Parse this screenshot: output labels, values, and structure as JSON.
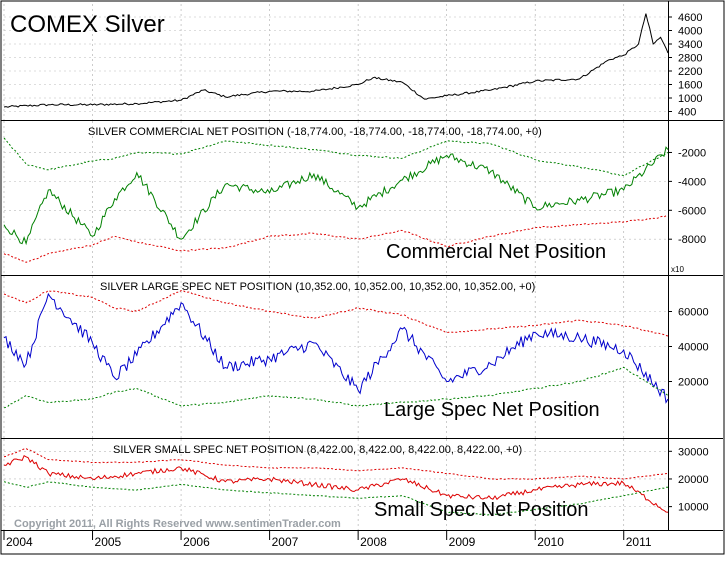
{
  "chart_data": [
    {
      "type": "line",
      "title": "COMEX Silver",
      "y_ticks": [
        400,
        1000,
        1600,
        2200,
        2800,
        3400,
        4000,
        4600
      ],
      "ylim": [
        200,
        5000
      ],
      "x": [
        "2004-01",
        "2004-07",
        "2005-01",
        "2005-07",
        "2006-01",
        "2006-04",
        "2006-07",
        "2007-01",
        "2007-07",
        "2008-01",
        "2008-03",
        "2008-07",
        "2008-10",
        "2009-01",
        "2009-07",
        "2010-01",
        "2010-07",
        "2010-11",
        "2011-01",
        "2011-03",
        "2011-04",
        "2011-05",
        "2011-06",
        "2011-07"
      ],
      "series": [
        {
          "values": [
            600,
            700,
            700,
            750,
            900,
            1350,
            1050,
            1300,
            1300,
            1600,
            1900,
            1700,
            950,
            1100,
            1350,
            1750,
            1850,
            2700,
            2900,
            3400,
            4750,
            3400,
            3700,
            3000
          ]
        }
      ]
    },
    {
      "type": "line",
      "title": "SILVER COMMERCIAL NET POSITION (-18,774.00, -18,774.00, -18,774.00, -18,774.00, +0)",
      "annotation": "Commercial Net Position",
      "y_ticks": [
        -2000,
        -4000,
        -6000,
        -8000
      ],
      "ylim": [
        -10200,
        -100
      ],
      "multiplier_label": "x10",
      "x": [
        "2004-01",
        "2004-04",
        "2004-07",
        "2005-01",
        "2005-04",
        "2005-07",
        "2006-01",
        "2006-07",
        "2007-01",
        "2007-07",
        "2008-01",
        "2008-07",
        "2009-01",
        "2009-07",
        "2010-01",
        "2010-07",
        "2011-01",
        "2011-07"
      ],
      "series": [
        {
          "values": [
            -7000,
            -8300,
            -4600,
            -7800,
            -5200,
            -3400,
            -8000,
            -4200,
            -4800,
            -3500,
            -5800,
            -3900,
            -2200,
            -3300,
            -5800,
            -5300,
            -4600,
            -1800
          ]
        },
        {
          "values": [
            -1000,
            -2800,
            -3200,
            -2600,
            -2400,
            -2000,
            -2100,
            -1200,
            -1500,
            -1800,
            -2200,
            -2400,
            -1200,
            -1400,
            -2500,
            -3000,
            -3600,
            -2000
          ]
        },
        {
          "values": [
            -9000,
            -9600,
            -9000,
            -8400,
            -7800,
            -8200,
            -8800,
            -8600,
            -7800,
            -7600,
            -8000,
            -7400,
            -8500,
            -7800,
            -7200,
            -7000,
            -6800,
            -6400
          ]
        }
      ]
    },
    {
      "type": "line",
      "title": "SILVER LARGE SPEC NET POSITION (10,352.00, 10,352.00, 10,352.00, 10,352.00, +0)",
      "annotation": "Large Spec Net Position",
      "y_ticks": [
        20000,
        40000,
        60000
      ],
      "ylim": [
        -10000,
        78000
      ],
      "x": [
        "2004-01",
        "2004-04",
        "2004-07",
        "2005-01",
        "2005-04",
        "2005-07",
        "2006-01",
        "2006-07",
        "2007-01",
        "2007-07",
        "2008-01",
        "2008-07",
        "2009-01",
        "2009-07",
        "2010-01",
        "2010-07",
        "2011-01",
        "2011-07"
      ],
      "series": [
        {
          "values": [
            45000,
            30000,
            70000,
            42000,
            22000,
            35000,
            65000,
            28000,
            33000,
            42000,
            15000,
            50000,
            20000,
            30000,
            48000,
            45000,
            38000,
            10000
          ]
        },
        {
          "values": [
            70000,
            65000,
            72000,
            68000,
            62000,
            60000,
            72000,
            65000,
            60000,
            56000,
            62000,
            58000,
            48000,
            50000,
            52000,
            55000,
            52000,
            46000
          ]
        },
        {
          "values": [
            5000,
            12000,
            8000,
            10000,
            14000,
            16000,
            6000,
            8000,
            12000,
            10000,
            6000,
            8000,
            10000,
            12000,
            16000,
            20000,
            28000,
            12000
          ]
        }
      ]
    },
    {
      "type": "line",
      "title": "SILVER SMALL SPEC NET POSITION (8,422.00, 8,422.00, 8,422.00, 8,422.00, +0)",
      "annotation": "Small Spec Net Position",
      "y_ticks": [
        10000,
        20000,
        30000
      ],
      "ylim": [
        3000,
        33000
      ],
      "x": [
        "2004-01",
        "2004-04",
        "2004-07",
        "2005-01",
        "2005-07",
        "2006-01",
        "2006-07",
        "2007-01",
        "2007-07",
        "2008-01",
        "2008-07",
        "2009-01",
        "2009-07",
        "2010-01",
        "2010-07",
        "2011-01",
        "2011-07"
      ],
      "series": [
        {
          "values": [
            25000,
            28000,
            22000,
            20000,
            22000,
            24000,
            19000,
            20000,
            18000,
            16000,
            20000,
            14000,
            13000,
            16000,
            18000,
            18500,
            8000
          ]
        },
        {
          "values": [
            28000,
            31000,
            27000,
            26000,
            26000,
            27000,
            25000,
            24000,
            24000,
            23000,
            24000,
            22000,
            20000,
            20000,
            21000,
            20000,
            22000
          ]
        },
        {
          "values": [
            19000,
            17000,
            19000,
            17000,
            16000,
            18000,
            16000,
            15000,
            14000,
            13000,
            14000,
            8000,
            7000,
            9000,
            11000,
            14000,
            17000
          ]
        }
      ]
    }
  ],
  "x_axis": {
    "ticks": [
      {
        "label": "2004",
        "date": "2004-01"
      },
      {
        "label": "2005",
        "date": "2005-01"
      },
      {
        "label": "2006",
        "date": "2006-01"
      },
      {
        "label": "2007",
        "date": "2007-01"
      },
      {
        "label": "2008",
        "date": "2008-01"
      },
      {
        "label": "2009",
        "date": "2009-01"
      },
      {
        "label": "2010",
        "date": "2010-01"
      },
      {
        "label": "2011",
        "date": "2011-01"
      }
    ]
  },
  "copyright": "Copyright 2011, All Rights Reserved  www.sentimenTrader.com",
  "colors": {
    "price": "#000000",
    "commercial": "#008000",
    "large_spec": "#0000cc",
    "small_spec": "#dd0000",
    "band_upper_commercial": "#008000",
    "band_lower_commercial": "#dd0000",
    "band_upper_spec": "#dd0000",
    "band_lower_spec": "#008000",
    "grid": "#999999",
    "copyright": "#9aa0a6"
  }
}
